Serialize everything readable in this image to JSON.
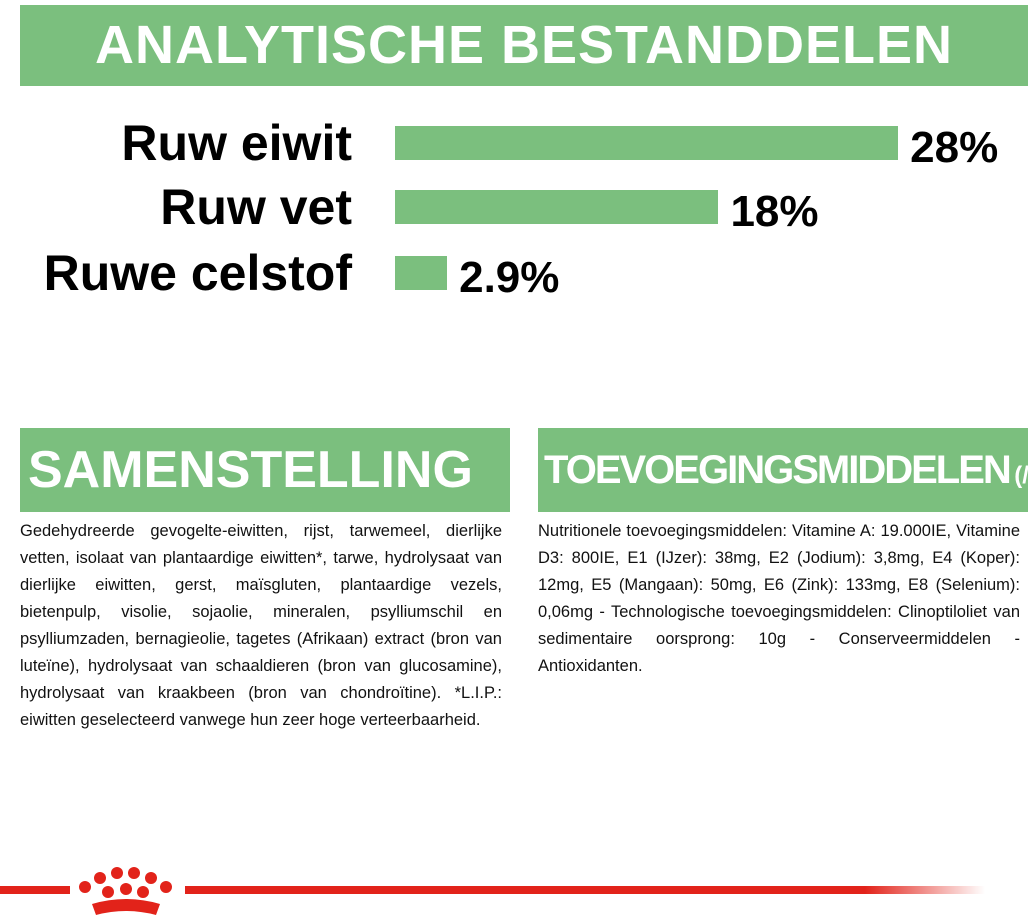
{
  "header": {
    "title": "ANALYTISCHE BESTANDDELEN"
  },
  "nutrients": {
    "type": "bar",
    "categories": [
      "Ruw eiwit",
      "Ruw vet",
      "Ruwe celstof"
    ],
    "values": [
      28,
      18,
      2.9
    ],
    "value_labels": [
      "28%",
      "18%",
      "2.9%"
    ],
    "color": "#7bbf7e"
  },
  "composition": {
    "title": "SAMENSTELLING",
    "text": "Gedehydreerde gevogelte-eiwitten, rijst, tarwemeel, dierlijke vetten, isolaat van plantaardige eiwitten*, tarwe, hydrolysaat van dierlijke eiwitten, gerst, maïsgluten, plantaardige vezels, bietenpulp, visolie, sojaolie, mineralen, psylliumschil en psylliumzaden, bernagieolie, tagetes (Afrikaan) extract (bron van luteïne), hydrolysaat van schaaldieren (bron van glucosamine), hydrolysaat van kraakbeen (bron van chondroïtine). *L.I.P.: eiwitten geselecteerd vanwege hun zeer hoge verteerbaarheid."
  },
  "additives": {
    "title": "TOEVOEGINGSMIDDELEN",
    "unit": "(/kg)",
    "text": "Nutritionele toevoegingsmiddelen: Vitamine A: 19.000IE, Vitamine D3: 800IE, E1 (IJzer): 38mg, E2 (Jodium): 3,8mg, E4 (Koper): 12mg, E5 (Mangaan): 50mg, E6 (Zink): 133mg, E8 (Selenium): 0,06mg - Technologische toevoegingsmiddelen: Clinoptiloliet van sedimentaire oorsprong: 10g - Conserveermiddelen - Antioxidanten."
  }
}
